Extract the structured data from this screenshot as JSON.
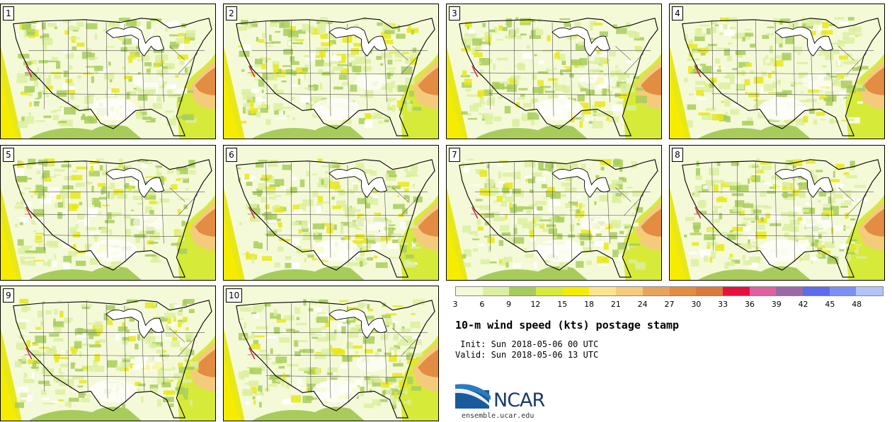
{
  "panels": [
    {
      "label": "1",
      "variant": 0
    },
    {
      "label": "2",
      "variant": 1
    },
    {
      "label": "3",
      "variant": 2
    },
    {
      "label": "4",
      "variant": 3
    },
    {
      "label": "5",
      "variant": 4
    },
    {
      "label": "6",
      "variant": 5
    },
    {
      "label": "7",
      "variant": 6
    },
    {
      "label": "8",
      "variant": 7
    },
    {
      "label": "9",
      "variant": 8
    },
    {
      "label": "10",
      "variant": 9
    }
  ],
  "colorbar": {
    "colors": [
      "#f4fad8",
      "#dcefa0",
      "#a8cc5c",
      "#d6ea3a",
      "#f6ec00",
      "#fbe58c",
      "#f4cb7c",
      "#e8a45c",
      "#e38c44",
      "#dc7a3c",
      "#e8103c",
      "#e060a0",
      "#9a6aa8",
      "#5c6cec",
      "#7c90f4",
      "#b4c4f8"
    ],
    "ticks": [
      "3",
      "6",
      "9",
      "12",
      "15",
      "18",
      "21",
      "24",
      "27",
      "30",
      "33",
      "36",
      "39",
      "42",
      "45",
      "48"
    ]
  },
  "title": "10-m wind speed (kts) postage stamp",
  "init": " Init: Sun 2018-05-06 00 UTC",
  "valid": "Valid: Sun 2018-05-06 13 UTC",
  "logo": {
    "text": "NCAR",
    "site": "ensemble.ucar.edu",
    "color": "#1a3a6b",
    "swoosh_color": "#2a7ac0"
  }
}
